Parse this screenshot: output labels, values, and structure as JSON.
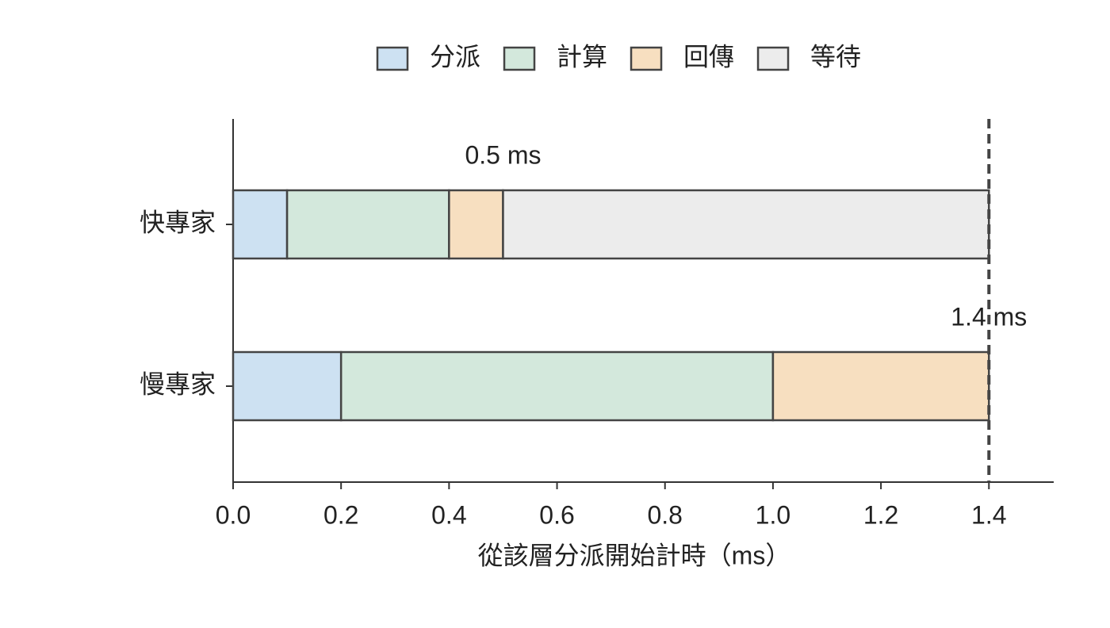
{
  "chart_data": {
    "type": "stacked-barh",
    "categories": [
      "快專家",
      "慢專家"
    ],
    "series": [
      {
        "name": "分派",
        "color": "#cde1f2",
        "values": [
          0.1,
          0.2
        ]
      },
      {
        "name": "計算",
        "color": "#d3e8dc",
        "values": [
          0.3,
          0.8
        ]
      },
      {
        "name": "回傳",
        "color": "#f7dfc0",
        "values": [
          0.1,
          0.4
        ]
      },
      {
        "name": "等待",
        "color": "#ececec",
        "values": [
          0.9,
          null
        ]
      }
    ],
    "xlabel": "從該層分派開始計時（ms）",
    "xlim": [
      0,
      1.52
    ],
    "xticks": [
      {
        "value": 0,
        "label": "0.0"
      },
      0.2,
      0.4,
      0.6,
      0.8,
      {
        "value": 1,
        "label": "1.0"
      },
      1.2,
      1.4
    ],
    "vline": 1.4,
    "annotations": [
      {
        "text": "0.5 ms",
        "x": 0.5,
        "category": 0
      },
      {
        "text": "1.4 ms",
        "x": 1.4,
        "category": 1
      }
    ],
    "legend": "top"
  }
}
